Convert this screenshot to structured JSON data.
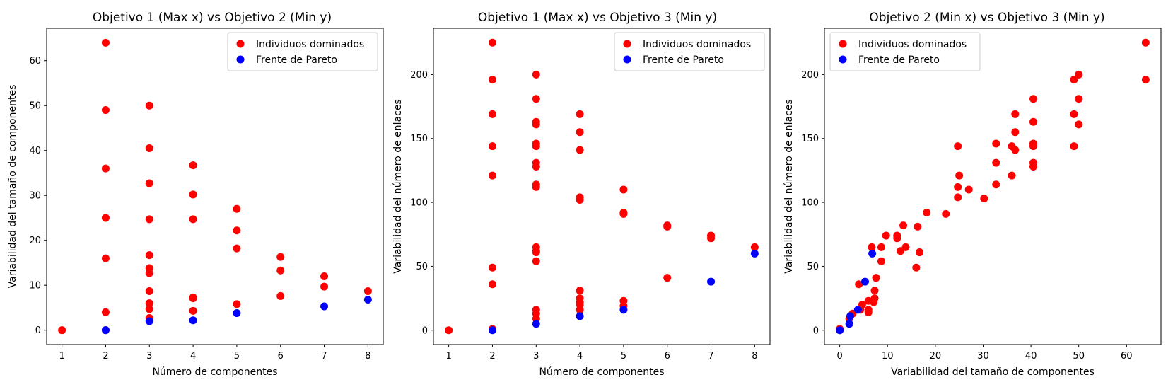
{
  "colors": {
    "dominated": "#ff0000",
    "pareto": "#0000ff"
  },
  "chart_data": [
    {
      "type": "scatter",
      "title": "Objetivo 1 (Max x) vs Objetivo 2 (Min y)",
      "xlabel": "Número de componentes",
      "ylabel": "Variabilidad del tamaño de componentes",
      "xlim": [
        0.65,
        8.35
      ],
      "ylim": [
        -3.2,
        67.2
      ],
      "xticks": [
        1,
        2,
        3,
        4,
        5,
        6,
        7,
        8
      ],
      "yticks": [
        0,
        10,
        20,
        30,
        40,
        50,
        60
      ],
      "legend": "top-right",
      "series": [
        {
          "name": "Individuos dominados",
          "color": "#ff0000",
          "points": [
            [
              1,
              0
            ],
            [
              2,
              64
            ],
            [
              2,
              49
            ],
            [
              2,
              36
            ],
            [
              2,
              25
            ],
            [
              2,
              16
            ],
            [
              2,
              4
            ],
            [
              2,
              0
            ],
            [
              3,
              50
            ],
            [
              3,
              40.5
            ],
            [
              3,
              32.7
            ],
            [
              3,
              24.7
            ],
            [
              3,
              16.7
            ],
            [
              3,
              13.8
            ],
            [
              3,
              12.7
            ],
            [
              3,
              8.7
            ],
            [
              3,
              6
            ],
            [
              3,
              4.7
            ],
            [
              3,
              2.7
            ],
            [
              4,
              36.7
            ],
            [
              4,
              30.2
            ],
            [
              4,
              24.7
            ],
            [
              4,
              7.3
            ],
            [
              4,
              7.1
            ],
            [
              4,
              4.3
            ],
            [
              5,
              27
            ],
            [
              5,
              22.2
            ],
            [
              5,
              18.2
            ],
            [
              5,
              5.8
            ],
            [
              6,
              16.3
            ],
            [
              6,
              13.3
            ],
            [
              6,
              7.6
            ],
            [
              7,
              12
            ],
            [
              7,
              9.7
            ],
            [
              8,
              8.7
            ]
          ]
        },
        {
          "name": "Frente de Pareto",
          "color": "#0000ff",
          "points": [
            [
              2,
              0
            ],
            [
              3,
              2
            ],
            [
              4,
              2.2
            ],
            [
              5,
              3.8
            ],
            [
              7,
              5.3
            ],
            [
              8,
              6.8
            ]
          ]
        }
      ]
    },
    {
      "type": "scatter",
      "title": "Objetivo 1 (Max x) vs Objetivo 3 (Min y)",
      "xlabel": "Número de componentes",
      "ylabel": "Variabilidad del número de enlaces",
      "xlim": [
        0.65,
        8.35
      ],
      "ylim": [
        -11.2,
        236.2
      ],
      "xticks": [
        1,
        2,
        3,
        4,
        5,
        6,
        7,
        8
      ],
      "yticks": [
        0,
        50,
        100,
        150,
        200
      ],
      "legend": "top-right",
      "series": [
        {
          "name": "Individuos dominados",
          "color": "#ff0000",
          "points": [
            [
              1,
              0
            ],
            [
              2,
              225
            ],
            [
              2,
              196
            ],
            [
              2,
              169
            ],
            [
              2,
              144
            ],
            [
              2,
              121
            ],
            [
              2,
              49
            ],
            [
              2,
              36
            ],
            [
              2,
              1
            ],
            [
              3,
              200
            ],
            [
              3,
              181
            ],
            [
              3,
              163
            ],
            [
              3,
              161
            ],
            [
              3,
              146
            ],
            [
              3,
              144
            ],
            [
              3,
              131
            ],
            [
              3,
              128
            ],
            [
              3,
              114
            ],
            [
              3,
              112
            ],
            [
              3,
              65
            ],
            [
              3,
              62
            ],
            [
              3,
              61
            ],
            [
              3,
              54
            ],
            [
              3,
              16
            ],
            [
              3,
              13
            ],
            [
              3,
              9
            ],
            [
              4,
              169
            ],
            [
              4,
              155
            ],
            [
              4,
              141
            ],
            [
              4,
              104
            ],
            [
              4,
              102
            ],
            [
              4,
              31
            ],
            [
              4,
              25
            ],
            [
              4,
              22
            ],
            [
              4,
              20
            ],
            [
              4,
              16
            ],
            [
              5,
              110
            ],
            [
              5,
              92
            ],
            [
              5,
              91
            ],
            [
              5,
              23
            ],
            [
              5,
              19
            ],
            [
              6,
              82
            ],
            [
              6,
              81
            ],
            [
              6,
              41
            ],
            [
              7,
              74
            ],
            [
              7,
              72
            ],
            [
              8,
              65
            ]
          ]
        },
        {
          "name": "Frente de Pareto",
          "color": "#0000ff",
          "points": [
            [
              2,
              0
            ],
            [
              3,
              5
            ],
            [
              4,
              11
            ],
            [
              5,
              16
            ],
            [
              7,
              38
            ],
            [
              8,
              60
            ]
          ]
        }
      ]
    },
    {
      "type": "scatter",
      "title": "Objetivo 2 (Min x) vs Objetivo 3 (Min y)",
      "xlabel": "Variabilidad del tamaño de componentes",
      "ylabel": "Variabilidad del número de enlaces",
      "xlim": [
        -3.2,
        67.2
      ],
      "ylim": [
        -11.2,
        236.2
      ],
      "xticks": [
        0,
        10,
        20,
        30,
        40,
        50,
        60
      ],
      "yticks": [
        0,
        50,
        100,
        150,
        200
      ],
      "legend": "top-left",
      "series": [
        {
          "name": "Individuos dominados",
          "color": "#ff0000",
          "points": [
            [
              0,
              0
            ],
            [
              0,
              1
            ],
            [
              2,
              9
            ],
            [
              2.7,
              13
            ],
            [
              4,
              36
            ],
            [
              4.3,
              16
            ],
            [
              4.7,
              20
            ],
            [
              6,
              23
            ],
            [
              6,
              14
            ],
            [
              6,
              16
            ],
            [
              6.7,
              65
            ],
            [
              7.3,
              25
            ],
            [
              7.1,
              22
            ],
            [
              7.6,
              41
            ],
            [
              7.3,
              31
            ],
            [
              8.7,
              65
            ],
            [
              8.7,
              54
            ],
            [
              9.7,
              74
            ],
            [
              12,
              72
            ],
            [
              12,
              74
            ],
            [
              12.7,
              62
            ],
            [
              13.3,
              82
            ],
            [
              13.8,
              65
            ],
            [
              16,
              49
            ],
            [
              16.3,
              81
            ],
            [
              16.7,
              61
            ],
            [
              18.2,
              92
            ],
            [
              22.2,
              91
            ],
            [
              24.7,
              144
            ],
            [
              24.7,
              112
            ],
            [
              25,
              121
            ],
            [
              24.7,
              104
            ],
            [
              27,
              110
            ],
            [
              30.2,
              103
            ],
            [
              32.7,
              146
            ],
            [
              32.7,
              131
            ],
            [
              32.7,
              114
            ],
            [
              36,
              144
            ],
            [
              36,
              121
            ],
            [
              36.7,
              169
            ],
            [
              36.7,
              155
            ],
            [
              36.7,
              141
            ],
            [
              40.5,
              181
            ],
            [
              40.5,
              163
            ],
            [
              40.5,
              146
            ],
            [
              40.5,
              144
            ],
            [
              40.5,
              131
            ],
            [
              40.5,
              128
            ],
            [
              49,
              196
            ],
            [
              49,
              169
            ],
            [
              49,
              144
            ],
            [
              50,
              200
            ],
            [
              50,
              181
            ],
            [
              50,
              161
            ],
            [
              64,
              225
            ],
            [
              64,
              196
            ]
          ]
        },
        {
          "name": "Frente de Pareto",
          "color": "#0000ff",
          "points": [
            [
              0,
              0
            ],
            [
              2,
              5
            ],
            [
              2.2,
              11
            ],
            [
              3.8,
              16
            ],
            [
              5.3,
              38
            ],
            [
              6.8,
              60
            ]
          ]
        }
      ]
    }
  ]
}
